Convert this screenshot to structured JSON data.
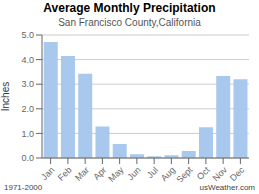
{
  "chart_data": {
    "type": "bar",
    "title": "Average Monthly Precipitation",
    "subtitle": "San Francisco County,California",
    "ylabel": "Inches",
    "annotations": [
      "1971-2000",
      "usWeather.com"
    ],
    "categories": [
      "Jan",
      "Feb",
      "Mar",
      "Apr",
      "May",
      "Jun",
      "Jul",
      "Aug",
      "Sept",
      "Oct",
      "Nov",
      "Dec"
    ],
    "values": [
      4.72,
      4.15,
      3.42,
      1.28,
      0.57,
      0.15,
      0.07,
      0.11,
      0.28,
      1.25,
      3.33,
      3.2
    ],
    "color": "#a8c8ee",
    "ylim": [
      0,
      5.0
    ],
    "yticks": [
      {
        "value": 0,
        "label": "0.0"
      },
      {
        "value": 1,
        "label": "1.0"
      },
      {
        "value": 2,
        "label": "2.0"
      },
      {
        "value": 3,
        "label": "3.0"
      },
      {
        "value": 4,
        "label": "4.0"
      },
      {
        "value": 5,
        "label": "5.0"
      }
    ],
    "grid": true
  }
}
